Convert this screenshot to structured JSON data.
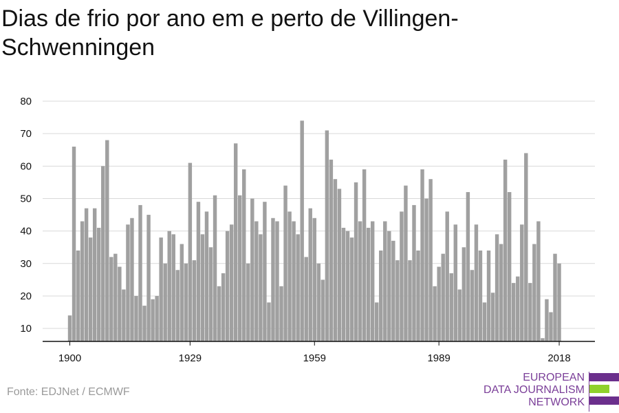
{
  "title": "Dias de frio por ano em e perto de Villingen-Schwenningen",
  "source": "Fonte: EDJNet / ECMWF",
  "logo": {
    "line1": "EUROPEAN",
    "line2": "DATA JOURNALISM",
    "line3": "NETWORK"
  },
  "colors": {
    "bar": "#a0a0a0",
    "grid": "#d9d9d9",
    "axis": "#111111",
    "logo_purple": "#6b2f8c",
    "logo_green": "#8fd12b"
  },
  "chart_data": {
    "type": "bar",
    "xlabel": "",
    "ylabel": "",
    "x_start": 1900,
    "x_end": 2018,
    "ylim": [
      6,
      80
    ],
    "yticks": [
      10,
      20,
      30,
      40,
      50,
      60,
      70,
      80
    ],
    "xticks": [
      1900,
      1929,
      1959,
      1989,
      2018
    ],
    "grid": true,
    "values": [
      14,
      66,
      34,
      43,
      47,
      38,
      47,
      41,
      60,
      68,
      32,
      33,
      29,
      22,
      42,
      44,
      20,
      48,
      17,
      45,
      19,
      20,
      38,
      30,
      40,
      39,
      28,
      36,
      30,
      61,
      31,
      49,
      39,
      46,
      35,
      51,
      23,
      27,
      40,
      42,
      67,
      51,
      59,
      30,
      50,
      43,
      39,
      49,
      18,
      44,
      43,
      23,
      54,
      46,
      43,
      39,
      74,
      32,
      47,
      44,
      30,
      25,
      71,
      62,
      56,
      53,
      41,
      40,
      38,
      55,
      43,
      59,
      41,
      43,
      18,
      34,
      43,
      40,
      37,
      31,
      46,
      54,
      31,
      48,
      34,
      59,
      50,
      56,
      23,
      29,
      33,
      46,
      27,
      42,
      22,
      35,
      52,
      28,
      42,
      34,
      18,
      34,
      21,
      39,
      36,
      62,
      52,
      24,
      26,
      42,
      64,
      24,
      36,
      43,
      7,
      19,
      15,
      33,
      30
    ]
  }
}
